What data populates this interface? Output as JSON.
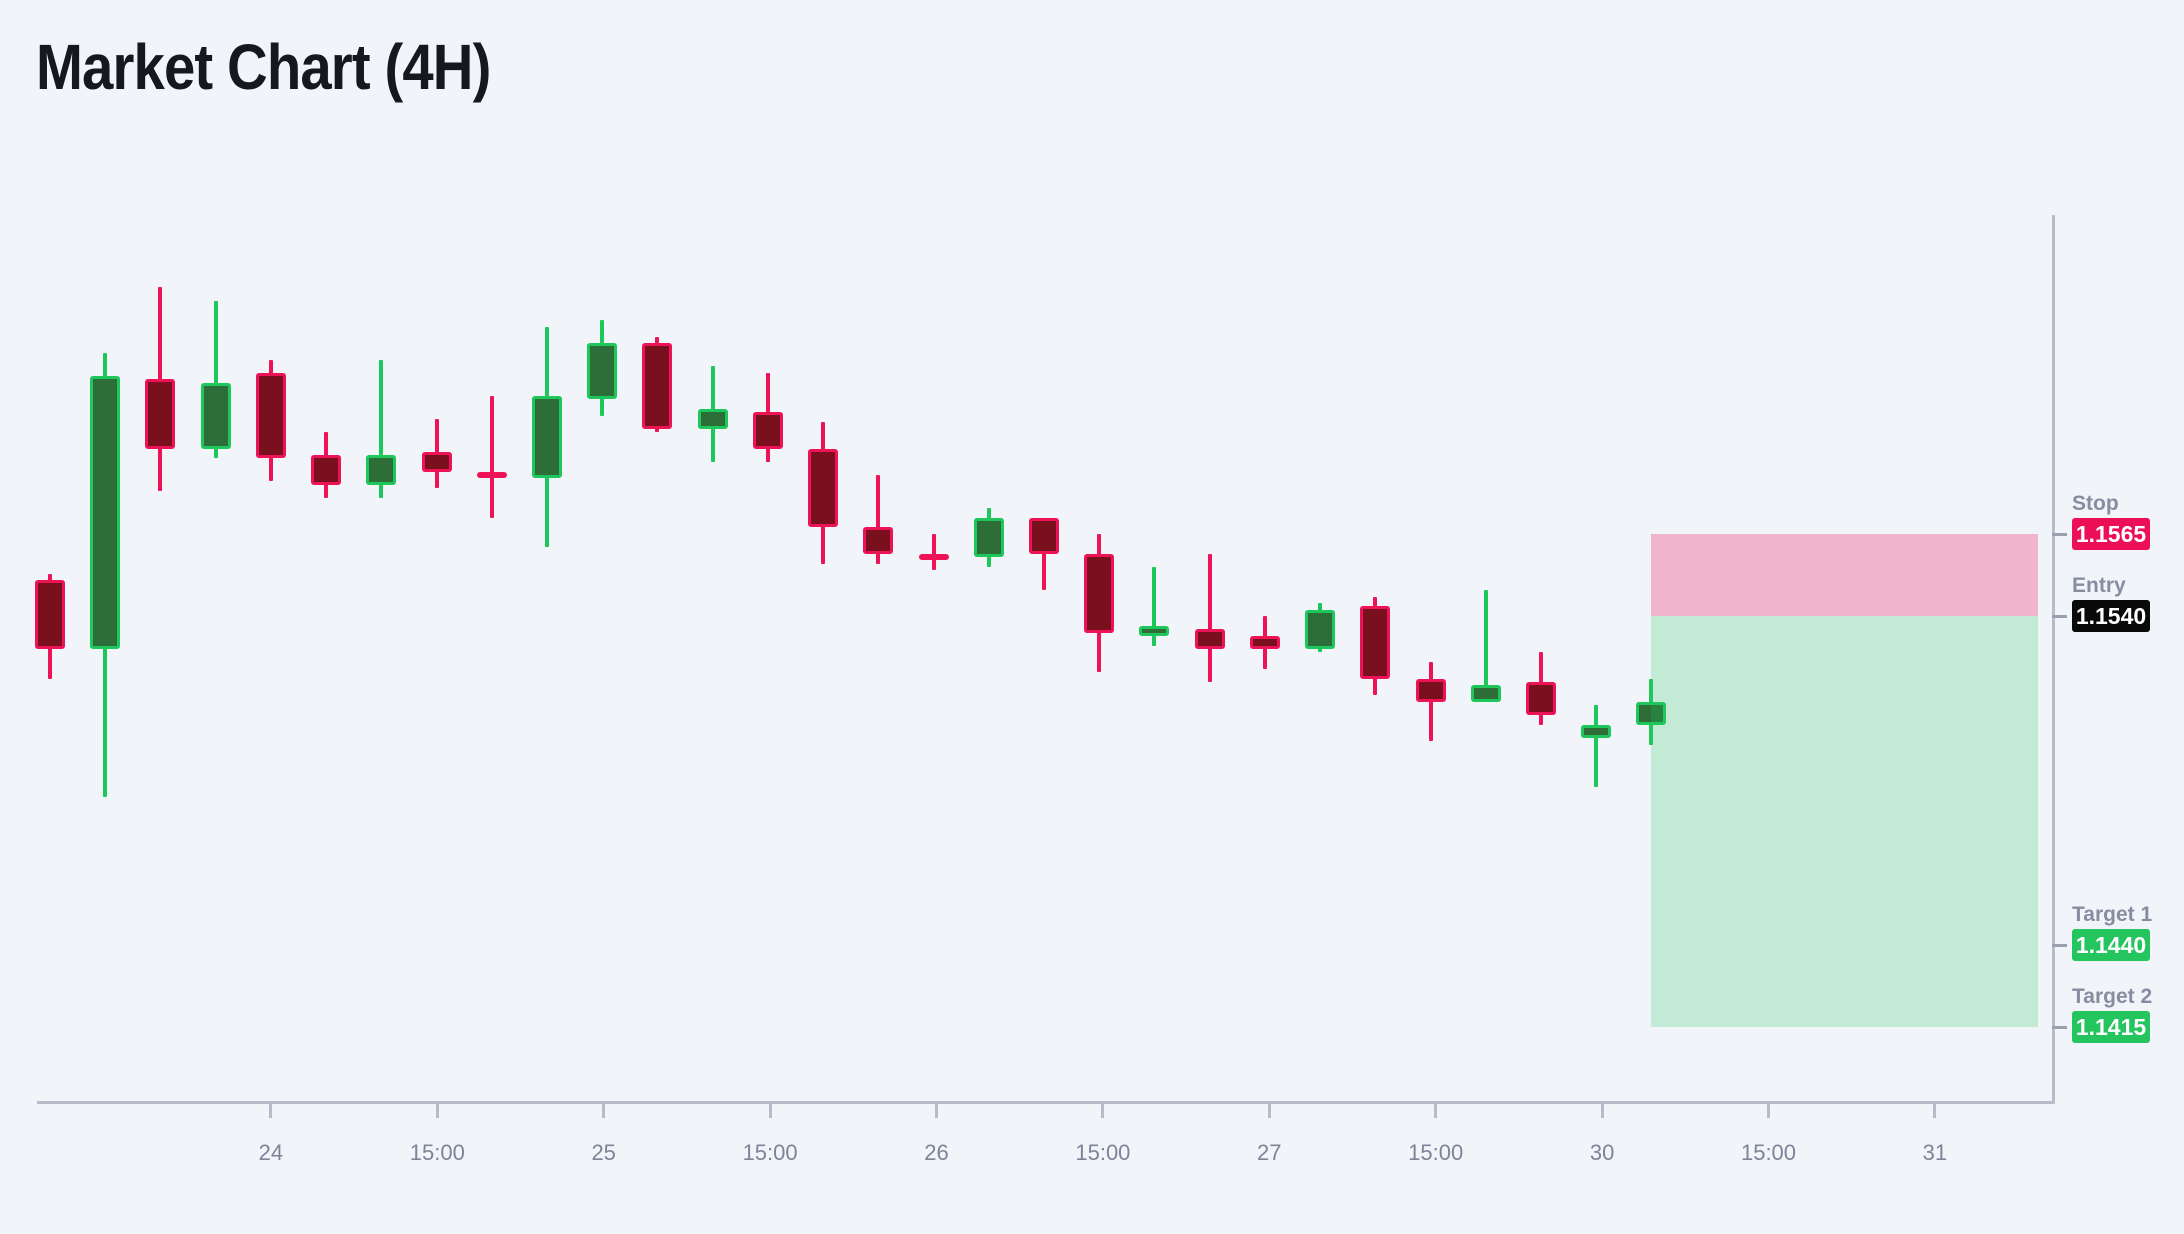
{
  "title": "Market Chart (4H)",
  "colors": {
    "background": "#f1f4f8",
    "bull_border": "#1ec75c",
    "bull_fill": "#2d6e38",
    "bear_border": "#ed1356",
    "bear_fill": "#7a0f1e",
    "axis": "#b7bcc8",
    "x_tick_label": "#7e8398",
    "level_label": "#878da0",
    "badge_text": "#ffffff",
    "title_text": "#15181e"
  },
  "chart_data": {
    "type": "candlestick",
    "title": "Market Chart (4H)",
    "timeframe": "4H",
    "grid": false,
    "x_axis": {
      "tick_labels": [
        "24",
        "15:00",
        "25",
        "15:00",
        "26",
        "15:00",
        "27",
        "15:00",
        "30",
        "15:00",
        "31"
      ]
    },
    "y_axis": {
      "visible_price_range": [
        1.1415,
        1.164
      ],
      "labels_shown_only_for_levels": true
    },
    "candles": [
      {
        "o": 1.1551,
        "h": 1.1553,
        "l": 1.1521,
        "c": 1.153
      },
      {
        "o": 1.153,
        "h": 1.162,
        "l": 1.1485,
        "c": 1.1613
      },
      {
        "o": 1.1612,
        "h": 1.164,
        "l": 1.1578,
        "c": 1.1591
      },
      {
        "o": 1.1591,
        "h": 1.1636,
        "l": 1.1588,
        "c": 1.1611
      },
      {
        "o": 1.1614,
        "h": 1.1618,
        "l": 1.1581,
        "c": 1.1588
      },
      {
        "o": 1.1589,
        "h": 1.1596,
        "l": 1.1576,
        "c": 1.158
      },
      {
        "o": 1.158,
        "h": 1.1618,
        "l": 1.1576,
        "c": 1.1589
      },
      {
        "o": 1.159,
        "h": 1.16,
        "l": 1.1579,
        "c": 1.1584
      },
      {
        "o": 1.1584,
        "h": 1.1607,
        "l": 1.157,
        "c": 1.1582
      },
      {
        "o": 1.1582,
        "h": 1.1628,
        "l": 1.1561,
        "c": 1.1607
      },
      {
        "o": 1.1606,
        "h": 1.163,
        "l": 1.1601,
        "c": 1.1623
      },
      {
        "o": 1.1623,
        "h": 1.1625,
        "l": 1.1596,
        "c": 1.1597
      },
      {
        "o": 1.1597,
        "h": 1.1616,
        "l": 1.1587,
        "c": 1.1603
      },
      {
        "o": 1.1602,
        "h": 1.1614,
        "l": 1.1587,
        "c": 1.1591
      },
      {
        "o": 1.1591,
        "h": 1.1599,
        "l": 1.1556,
        "c": 1.1567
      },
      {
        "o": 1.1567,
        "h": 1.1583,
        "l": 1.1556,
        "c": 1.1559
      },
      {
        "o": 1.1559,
        "h": 1.1565,
        "l": 1.1554,
        "c": 1.1558
      },
      {
        "o": 1.1558,
        "h": 1.1573,
        "l": 1.1555,
        "c": 1.157
      },
      {
        "o": 1.157,
        "h": 1.157,
        "l": 1.1548,
        "c": 1.1559
      },
      {
        "o": 1.1559,
        "h": 1.1565,
        "l": 1.1523,
        "c": 1.1535
      },
      {
        "o": 1.1534,
        "h": 1.1555,
        "l": 1.1531,
        "c": 1.1537
      },
      {
        "o": 1.1536,
        "h": 1.1559,
        "l": 1.152,
        "c": 1.153
      },
      {
        "o": 1.1534,
        "h": 1.154,
        "l": 1.1524,
        "c": 1.153
      },
      {
        "o": 1.153,
        "h": 1.1544,
        "l": 1.1529,
        "c": 1.1542
      },
      {
        "o": 1.1543,
        "h": 1.1546,
        "l": 1.1516,
        "c": 1.1521
      },
      {
        "o": 1.1521,
        "h": 1.1526,
        "l": 1.1502,
        "c": 1.1514
      },
      {
        "o": 1.1514,
        "h": 1.1548,
        "l": 1.1514,
        "c": 1.1519
      },
      {
        "o": 1.152,
        "h": 1.1529,
        "l": 1.1507,
        "c": 1.151
      },
      {
        "o": 1.1503,
        "h": 1.1513,
        "l": 1.1488,
        "c": 1.1507
      },
      {
        "o": 1.1507,
        "h": 1.1521,
        "l": 1.1501,
        "c": 1.1514
      }
    ],
    "levels": [
      {
        "name": "Stop",
        "price": 1.1565,
        "display": "1.1565",
        "badge_color": "#ec0e56"
      },
      {
        "name": "Entry",
        "price": 1.154,
        "display": "1.1540",
        "badge_color": "#0a0a0a"
      },
      {
        "name": "Target 1",
        "price": 1.144,
        "display": "1.1440",
        "badge_color": "#24c45f"
      },
      {
        "name": "Target 2",
        "price": 1.1415,
        "display": "1.1415",
        "badge_color": "#24c45f"
      }
    ],
    "zones": [
      {
        "name": "risk",
        "from": 1.1565,
        "to": 1.154,
        "color": "rgba(237,19,86,0.28)"
      },
      {
        "name": "reward",
        "from": 1.154,
        "to": 1.1415,
        "color": "rgba(30,199,92,0.22)"
      }
    ]
  }
}
